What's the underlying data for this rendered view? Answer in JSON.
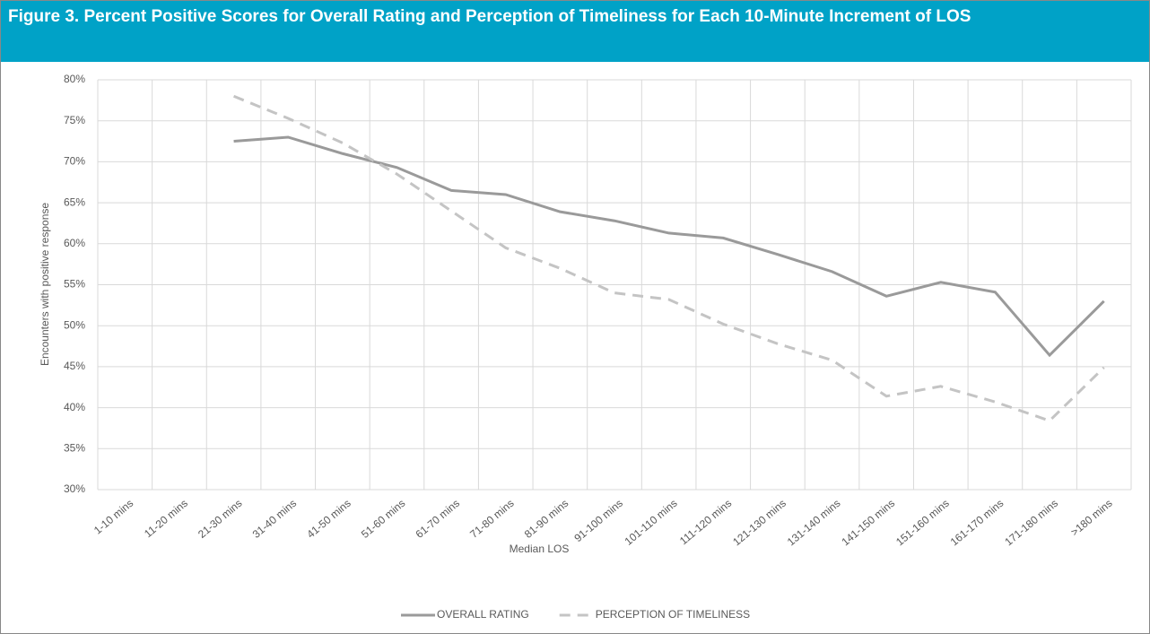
{
  "chart_data": {
    "type": "line",
    "title": "Figure 3. Percent Positive Scores for Overall Rating and Perception of Timeliness for Each 10-Minute Increment of LOS",
    "x_label": "Median LOS",
    "y_label": "Encounters with positive response",
    "categories": [
      "1-10 mins",
      "11-20 mins",
      "21-30 mins",
      "31-40 mins",
      "41-50 mins",
      "51-60 mins",
      "61-70 mins",
      "71-80 mins",
      "81-90 mins",
      "91-100 mins",
      "101-110 mins",
      "111-120 mins",
      "121-130 mins",
      "131-140 mins",
      "141-150 mins",
      "151-160 mins",
      "161-170 mins",
      "171-180 mins",
      ">180 mins"
    ],
    "series": [
      {
        "name": "OVERALL RATING",
        "color": "#9a9a9a",
        "line_style": "solid",
        "values": [
          null,
          null,
          72.5,
          73,
          71,
          69.3,
          66.5,
          66,
          63.9,
          62.8,
          61.3,
          60.7,
          58.7,
          56.6,
          53.6,
          55.3,
          54.1,
          46.4,
          53
        ]
      },
      {
        "name": "PERCEPTION OF TIMELINESS",
        "color": "#c4c4c4",
        "line_style": "dashed",
        "values": [
          null,
          null,
          78,
          75.3,
          72.3,
          68.5,
          64,
          59.5,
          57,
          54,
          53.2,
          50.2,
          47.8,
          45.8,
          41.4,
          42.6,
          40.7,
          38.4,
          44.9
        ]
      }
    ],
    "ylim": [
      30,
      80
    ],
    "yticks": [
      {
        "value": 30,
        "label": "30%"
      },
      {
        "value": 35,
        "label": "35%"
      },
      {
        "value": 40,
        "label": "40%"
      },
      {
        "value": 45,
        "label": "45%"
      },
      {
        "value": 50,
        "label": "50%"
      },
      {
        "value": 55,
        "label": "55%"
      },
      {
        "value": 60,
        "label": "60%"
      },
      {
        "value": 65,
        "label": "65%"
      },
      {
        "value": 70,
        "label": "70%"
      },
      {
        "value": 75,
        "label": "75%"
      },
      {
        "value": 80,
        "label": "80%"
      }
    ],
    "grid": true,
    "legend": "bottom"
  }
}
